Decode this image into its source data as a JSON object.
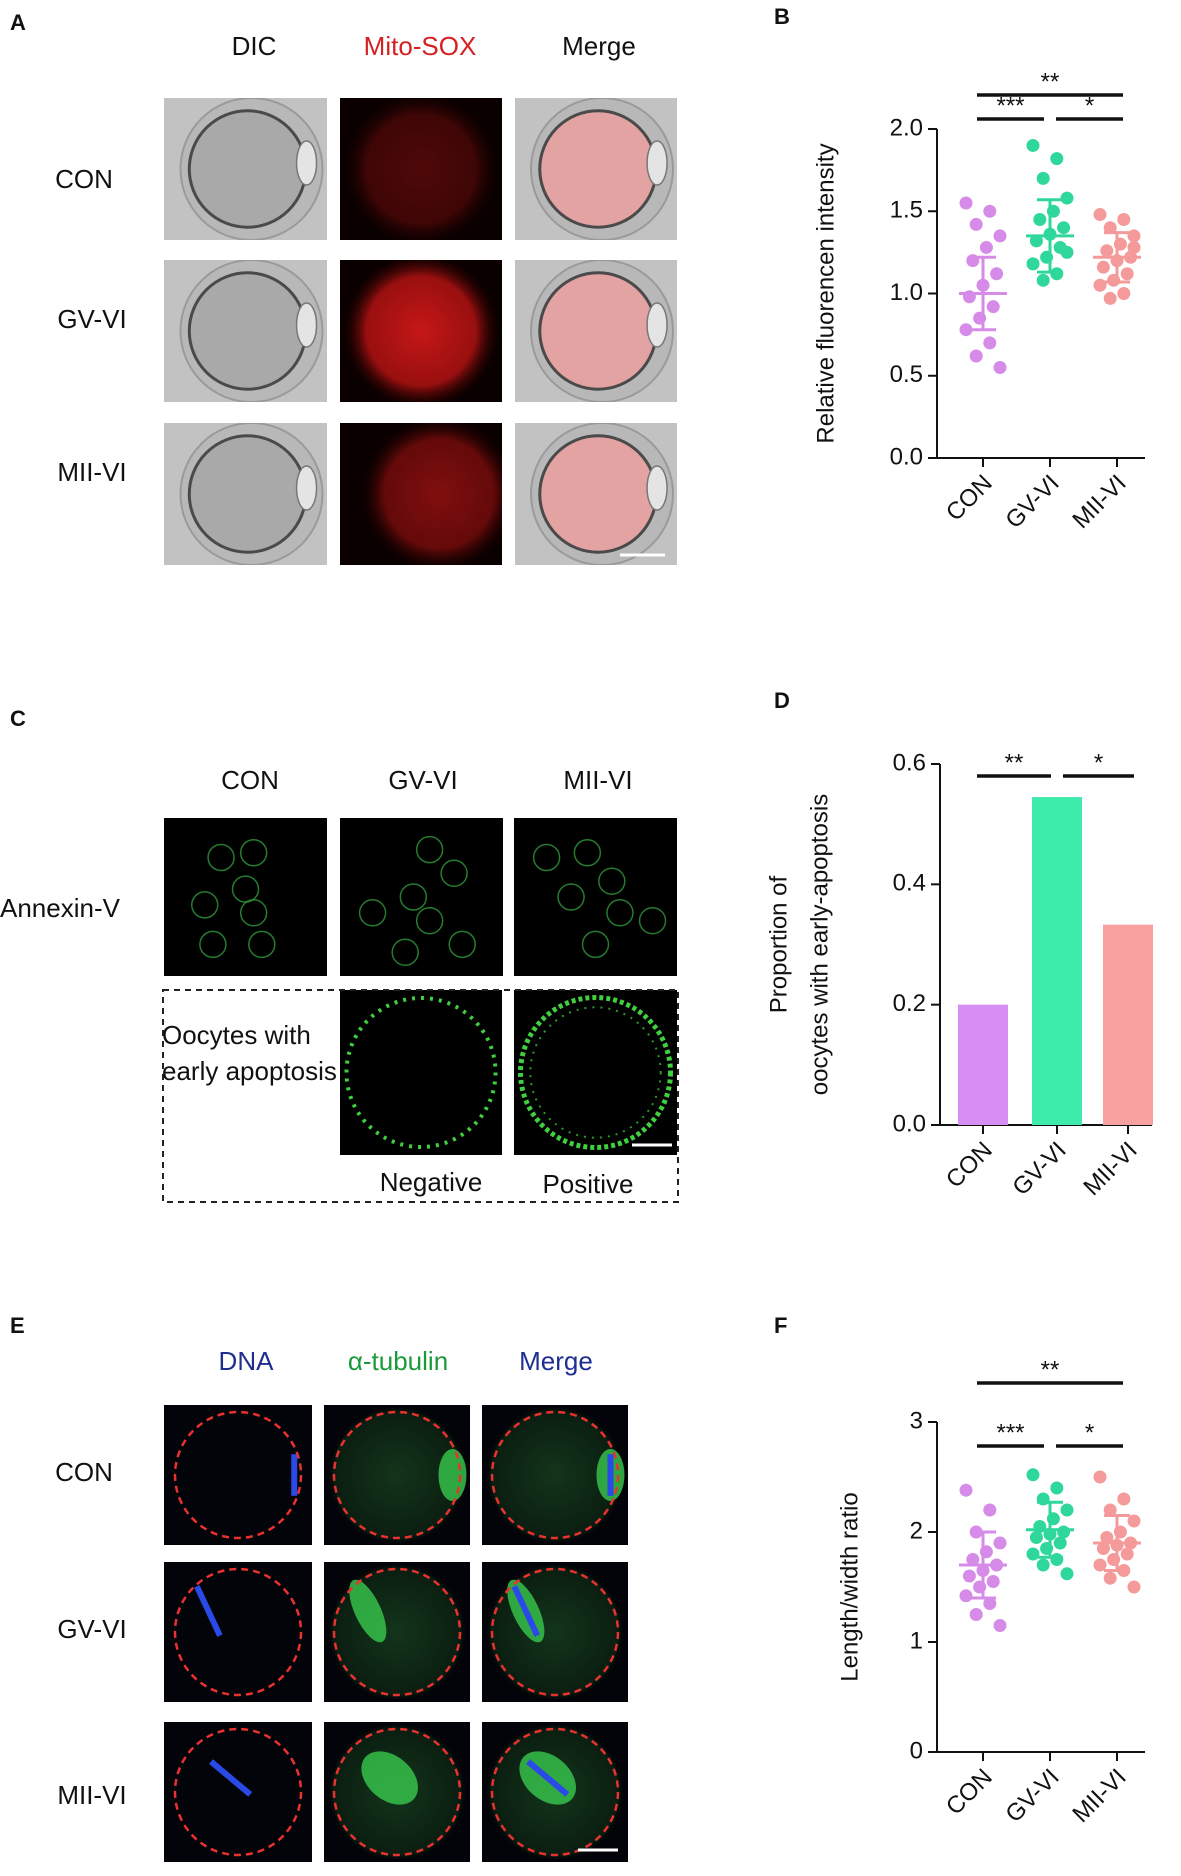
{
  "panels": {
    "a": {
      "letter": "A",
      "columns": [
        "DIC",
        "Mito-SOX",
        "Merge"
      ],
      "rows": [
        "CON",
        "GV-VI",
        "MII-VI"
      ]
    },
    "b": {
      "letter": "B"
    },
    "c": {
      "letter": "C",
      "columns": [
        "CON",
        "GV-VI",
        "MII-VI"
      ],
      "row": "Annexin-V",
      "box_title": [
        "Oocytes with",
        "early apoptosis"
      ],
      "box_labels": [
        "Negative",
        "Positive"
      ]
    },
    "d": {
      "letter": "D"
    },
    "e": {
      "letter": "E",
      "columns": [
        "DNA",
        "α-tubulin",
        "Merge"
      ],
      "rows": [
        "CON",
        "GV-VI",
        "MII-VI"
      ]
    },
    "f": {
      "letter": "F"
    }
  },
  "chart_data": [
    {
      "type": "strip",
      "ylabel": "Relative fluorencen intensity",
      "categories": [
        "CON",
        "GV-VI",
        "MII-VI"
      ],
      "colors": [
        "#d68be8",
        "#2fd89a",
        "#f59a9a"
      ],
      "points": [
        [
          1.55,
          1.5,
          1.42,
          1.35,
          1.28,
          1.2,
          1.12,
          1.05,
          0.98,
          0.92,
          0.85,
          0.78,
          0.7,
          0.62,
          0.55
        ],
        [
          1.9,
          1.82,
          1.7,
          1.58,
          1.5,
          1.45,
          1.4,
          1.36,
          1.32,
          1.28,
          1.22,
          1.18,
          1.12,
          1.08,
          1.25
        ],
        [
          1.48,
          1.45,
          1.4,
          1.35,
          1.3,
          1.26,
          1.22,
          1.2,
          1.16,
          1.12,
          1.08,
          1.05,
          1.0,
          0.97,
          1.28
        ]
      ],
      "means": [
        1.0,
        1.35,
        1.22
      ],
      "sd": [
        0.22,
        0.22,
        0.15
      ],
      "ylim": [
        0,
        2.0
      ],
      "yticks": [
        {
          "value": 0,
          "label": "0.0"
        },
        {
          "value": 0.5,
          "label": "0.5"
        },
        {
          "value": 1,
          "label": "1.0"
        },
        {
          "value": 1.5,
          "label": "1.5"
        },
        {
          "value": 2,
          "label": "2.0"
        }
      ],
      "annotations": [
        {
          "label": "***",
          "between": [
            "CON",
            "GV-VI"
          ]
        },
        {
          "label": "*",
          "between": [
            "GV-VI",
            "MII-VI"
          ]
        },
        {
          "label": "**",
          "between": [
            "CON",
            "MII-VI"
          ]
        }
      ]
    },
    {
      "type": "bar",
      "ylabel": [
        "Proportion of",
        "oocytes with early-apoptosis"
      ],
      "categories": [
        "CON",
        "GV-VI",
        "MII-VI"
      ],
      "colors": [
        "#d68ef5",
        "#3debaa",
        "#f9a0a0"
      ],
      "values": [
        0.2,
        0.545,
        0.333
      ],
      "ylim": [
        0,
        0.6
      ],
      "yticks": [
        {
          "value": 0,
          "label": "0.0"
        },
        {
          "value": 0.2,
          "label": "0.2"
        },
        {
          "value": 0.4,
          "label": "0.4"
        },
        {
          "value": 0.6,
          "label": "0.6"
        }
      ],
      "annotations": [
        {
          "label": "**",
          "between": [
            "CON",
            "GV-VI"
          ]
        },
        {
          "label": "*",
          "between": [
            "GV-VI",
            "MII-VI"
          ]
        }
      ]
    },
    {
      "type": "strip",
      "ylabel": "Length/width  ratio",
      "categories": [
        "CON",
        "GV-VI",
        "MII-VI"
      ],
      "colors": [
        "#d68be8",
        "#2fd89a",
        "#f59a9a"
      ],
      "points": [
        [
          2.38,
          2.2,
          2.0,
          1.9,
          1.82,
          1.75,
          1.7,
          1.65,
          1.6,
          1.55,
          1.5,
          1.42,
          1.35,
          1.25,
          1.15
        ],
        [
          2.52,
          2.4,
          2.3,
          2.2,
          2.12,
          2.05,
          2.0,
          1.98,
          1.95,
          1.9,
          1.85,
          1.8,
          1.75,
          1.7,
          1.62
        ],
        [
          2.5,
          2.3,
          2.2,
          2.1,
          2.0,
          1.95,
          1.9,
          1.88,
          1.85,
          1.8,
          1.75,
          1.7,
          1.65,
          1.58,
          1.5
        ]
      ],
      "means": [
        1.7,
        2.02,
        1.9
      ],
      "sd": [
        0.3,
        0.25,
        0.25
      ],
      "ylim": [
        0,
        3
      ],
      "yticks": [
        0,
        1,
        2,
        3
      ],
      "annotations": [
        {
          "label": "***",
          "between": [
            "CON",
            "GV-VI"
          ]
        },
        {
          "label": "*",
          "between": [
            "GV-VI",
            "MII-VI"
          ]
        },
        {
          "label": "**",
          "between": [
            "CON",
            "MII-VI"
          ]
        }
      ]
    }
  ]
}
